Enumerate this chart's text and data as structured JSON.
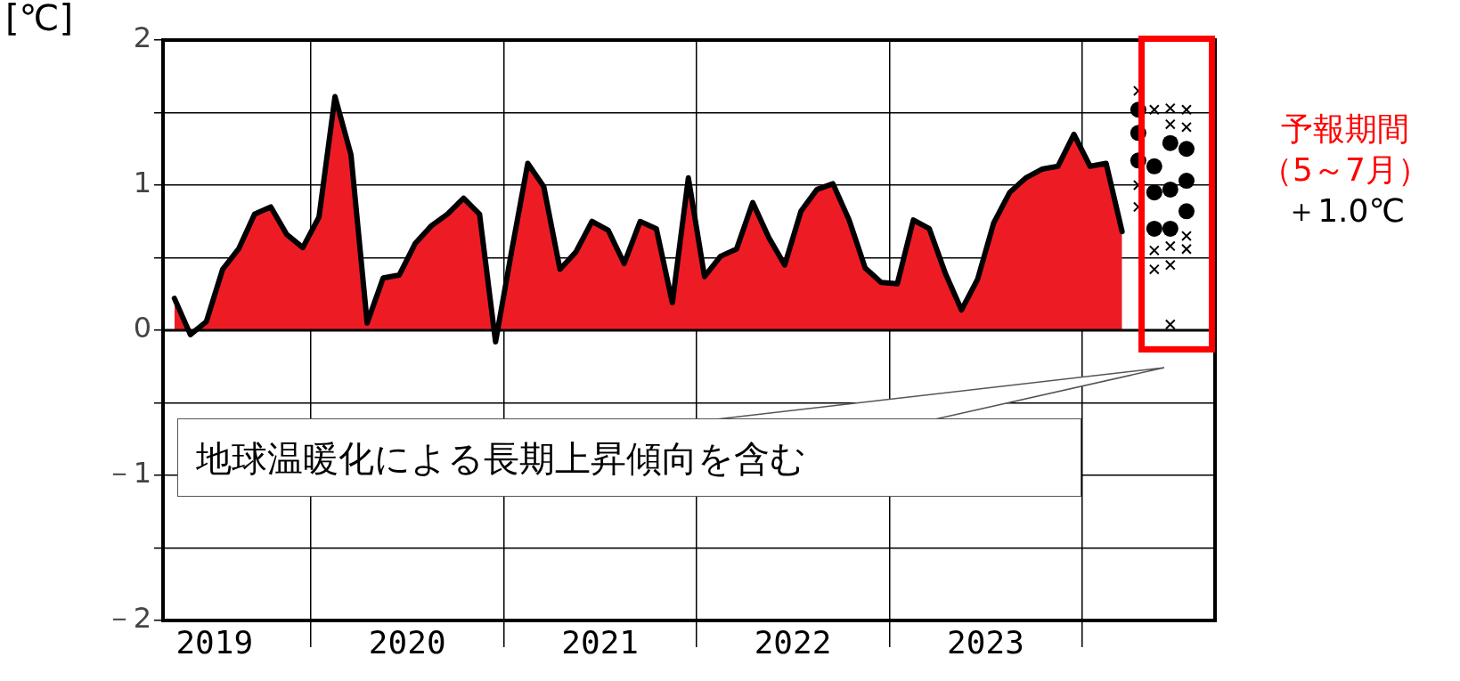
{
  "chart_data": {
    "type": "area",
    "ylabel": "[℃]",
    "xlim": [
      2019.233,
      2024.69
    ],
    "ylim": [
      -2,
      2
    ],
    "xticks": [
      {
        "value": 2019.5,
        "label": "2019"
      },
      {
        "value": 2020,
        "label": null
      },
      {
        "value": 2020.5,
        "label": "2020"
      },
      {
        "value": 2021,
        "label": null
      },
      {
        "value": 2021.5,
        "label": "2021"
      },
      {
        "value": 2022,
        "label": null
      },
      {
        "value": 2022.5,
        "label": "2022"
      },
      {
        "value": 2023,
        "label": null
      },
      {
        "value": 2023.5,
        "label": "2023"
      },
      {
        "value": 2024,
        "label": null
      }
    ],
    "yticks": [
      {
        "value": -2,
        "label": "－2"
      },
      {
        "value": -1.5,
        "label": null
      },
      {
        "value": -1,
        "label": "－1"
      },
      {
        "value": -0.5,
        "label": null
      },
      0,
      {
        "value": 0.5,
        "label": null
      },
      1,
      {
        "value": 1.5,
        "label": null
      },
      2
    ],
    "grid": true,
    "x": [
      2019.292,
      2019.375,
      2019.458,
      2019.542,
      2019.625,
      2019.708,
      2019.792,
      2019.875,
      2019.958,
      2020.042,
      2020.125,
      2020.208,
      2020.292,
      2020.375,
      2020.458,
      2020.542,
      2020.625,
      2020.708,
      2020.792,
      2020.875,
      2020.958,
      2021.042,
      2021.125,
      2021.208,
      2021.292,
      2021.375,
      2021.458,
      2021.542,
      2021.625,
      2021.708,
      2021.792,
      2021.875,
      2021.958,
      2022.042,
      2022.125,
      2022.208,
      2022.292,
      2022.375,
      2022.458,
      2022.542,
      2022.625,
      2022.708,
      2022.792,
      2022.875,
      2022.958,
      2023.042,
      2023.125,
      2023.208,
      2023.292,
      2023.375,
      2023.458,
      2023.542,
      2023.625,
      2023.708,
      2023.792,
      2023.875,
      2023.958,
      2024.042,
      2024.125,
      2024.208
    ],
    "series": [
      {
        "color": "#ed1c24",
        "values": [
          0.22,
          -0.03,
          0.06,
          0.42,
          0.56,
          0.8,
          0.85,
          0.66,
          0.57,
          0.78,
          1.61,
          1.21,
          0.05,
          0.36,
          0.38,
          0.6,
          0.72,
          0.8,
          0.91,
          0.8,
          -0.08,
          0.55,
          1.15,
          0.99,
          0.42,
          0.54,
          0.75,
          0.69,
          0.46,
          0.75,
          0.7,
          0.19,
          1.05,
          0.37,
          0.51,
          0.56,
          0.88,
          0.64,
          0.45,
          0.82,
          0.97,
          1.01,
          0.76,
          0.43,
          0.33,
          0.32,
          0.76,
          0.7,
          0.39,
          0.14,
          0.35,
          0.74,
          0.95,
          1.05,
          1.11,
          1.13,
          1.35,
          1.13,
          1.15,
          0.68
        ]
      },
      {
        "type": "scatter",
        "marker": "cross",
        "color": "#000000",
        "x": [
          2024.292,
          2024.292,
          2024.292,
          2024.375,
          2024.375,
          2024.375,
          2024.458,
          2024.458,
          2024.458,
          2024.458,
          2024.458,
          2024.542,
          2024.542,
          2024.542,
          2024.542
        ],
        "values": [
          1.65,
          1.0,
          0.85,
          1.52,
          0.55,
          0.42,
          1.53,
          1.42,
          0.58,
          0.45,
          0.04,
          1.52,
          1.4,
          0.65,
          0.56
        ]
      },
      {
        "type": "scatter",
        "marker": "circle",
        "color": "#000000",
        "x": [
          2024.292,
          2024.292,
          2024.292,
          2024.375,
          2024.375,
          2024.375,
          2024.458,
          2024.458,
          2024.458,
          2024.542,
          2024.542,
          2024.542
        ],
        "values": [
          1.52,
          1.36,
          1.17,
          1.13,
          0.95,
          0.7,
          1.29,
          0.97,
          0.7,
          1.25,
          1.03,
          0.82
        ]
      }
    ],
    "annotations": [
      "地球温暖化による長期上昇傾向を含む",
      "予報期間（5～7月）",
      "＋1.0℃"
    ]
  }
}
